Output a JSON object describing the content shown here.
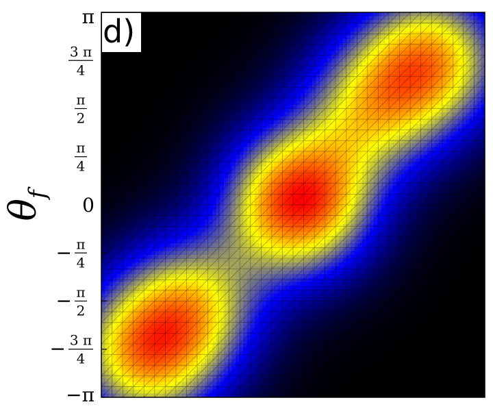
{
  "chart_data": {
    "type": "heatmap",
    "panel_label": "d)",
    "ylabel": "θ",
    "ylabel_sub": "f",
    "xlabel": "",
    "xlim": [
      -3.14159,
      3.14159
    ],
    "ylim": [
      -3.14159,
      3.14159
    ],
    "grid": true,
    "legend": "none",
    "colormap": [
      "#000000",
      "#0000ff",
      "#ffff00",
      "#ff0000"
    ],
    "yticks": [
      {
        "value": -3.14159,
        "sign": "−",
        "num": "π",
        "den": ""
      },
      {
        "value": -2.35619,
        "sign": "−",
        "num": "3 π",
        "den": "4"
      },
      {
        "value": -1.5708,
        "sign": "−",
        "num": "π",
        "den": "2"
      },
      {
        "value": -0.7854,
        "sign": "−",
        "num": "π",
        "den": "4"
      },
      {
        "value": 0,
        "sign": "",
        "num": "0",
        "den": ""
      },
      {
        "value": 0.7854,
        "sign": "",
        "num": "π",
        "den": "4"
      },
      {
        "value": 1.5708,
        "sign": "",
        "num": "π",
        "den": "2"
      },
      {
        "value": 2.35619,
        "sign": "",
        "num": "3 π",
        "den": "4"
      },
      {
        "value": 3.14159,
        "sign": "",
        "num": "π",
        "den": ""
      }
    ],
    "peaks": [
      {
        "x": 0.1,
        "y": 0.05,
        "amplitude": 1.0
      },
      {
        "x": -2.45,
        "y": -2.45,
        "amplitude": 0.75
      },
      {
        "x": 2.3,
        "y": 2.4,
        "amplitude": 0.72
      },
      {
        "x": -1.6,
        "y": -1.6,
        "amplitude": 0.55
      },
      {
        "x": 1.3,
        "y": 1.6,
        "amplitude": 0.55
      }
    ]
  }
}
